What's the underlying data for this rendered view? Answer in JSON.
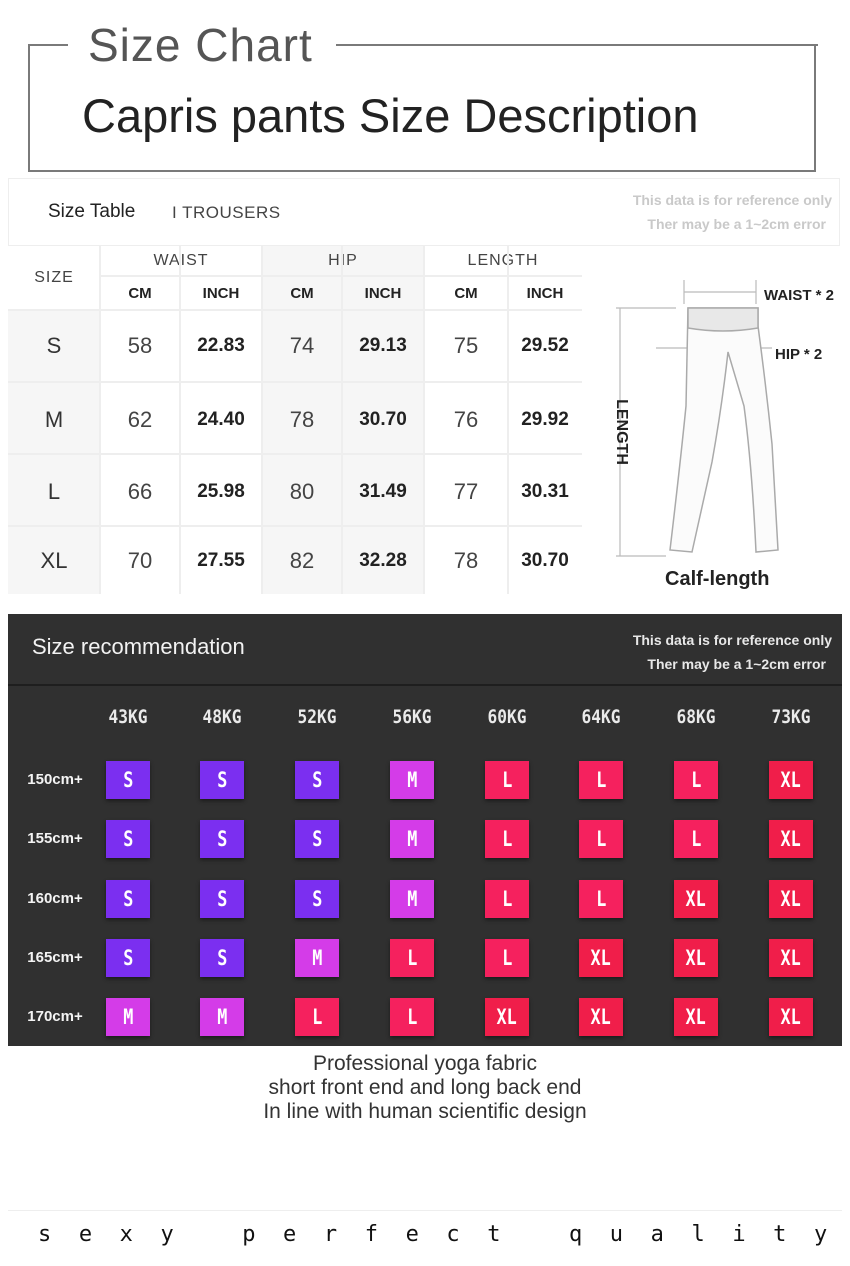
{
  "header": {
    "title": "Size Chart",
    "subtitle": "Capris pants Size Description"
  },
  "size_table": {
    "label": "Size Table",
    "category": "I TROUSERS",
    "note_line1": "This data is for reference only",
    "note_line2": "Ther may be a  1~2cm error",
    "size_header": "SIZE",
    "groups": [
      "WAIST",
      "HIP",
      "LENGTH"
    ],
    "units": [
      "CM",
      "INCH",
      "CM",
      "INCH",
      "CM",
      "INCH"
    ],
    "rows": [
      {
        "size": "S",
        "waist_cm": "58",
        "waist_in": "22.83",
        "hip_cm": "74",
        "hip_in": "29.13",
        "len_cm": "75",
        "len_in": "29.52"
      },
      {
        "size": "M",
        "waist_cm": "62",
        "waist_in": "24.40",
        "hip_cm": "78",
        "hip_in": "30.70",
        "len_cm": "76",
        "len_in": "29.92"
      },
      {
        "size": "L",
        "waist_cm": "66",
        "waist_in": "25.98",
        "hip_cm": "80",
        "hip_in": "31.49",
        "len_cm": "77",
        "len_in": "30.31"
      },
      {
        "size": "XL",
        "waist_cm": "70",
        "waist_in": "27.55",
        "hip_cm": "82",
        "hip_in": "32.28",
        "len_cm": "78",
        "len_in": "30.70"
      }
    ]
  },
  "diagram": {
    "waist_label": "WAIST * 2",
    "hip_label": "HIP * 2",
    "length_label": "LENGTH",
    "caption": "Calf-length"
  },
  "recommendation": {
    "title": "Size recommendation",
    "note_line1": "This data is for reference only",
    "note_line2": "Ther may be a  1~2cm error",
    "weights": [
      "43KG",
      "48KG",
      "52KG",
      "56KG",
      "60KG",
      "64KG",
      "68KG",
      "73KG"
    ],
    "heights": [
      "150cm+",
      "155cm+",
      "160cm+",
      "165cm+",
      "170cm+"
    ],
    "grid": [
      [
        "S",
        "S",
        "S",
        "M",
        "L",
        "L",
        "L",
        "XL"
      ],
      [
        "S",
        "S",
        "S",
        "M",
        "L",
        "L",
        "L",
        "XL"
      ],
      [
        "S",
        "S",
        "S",
        "M",
        "L",
        "L",
        "XL",
        "XL"
      ],
      [
        "S",
        "S",
        "M",
        "L",
        "L",
        "XL",
        "XL",
        "XL"
      ],
      [
        "M",
        "M",
        "L",
        "L",
        "XL",
        "XL",
        "XL",
        "XL"
      ]
    ],
    "colors": {
      "S": "#7b2ff0",
      "M": "#d43ce8",
      "L": "#f5215e",
      "XL": "#f01e4a"
    }
  },
  "footer": {
    "line1": "Professional yoga fabric",
    "line2": "short front end and long back end",
    "line3": "In line with human scientific design",
    "tagline": "sexy perfect quality"
  }
}
